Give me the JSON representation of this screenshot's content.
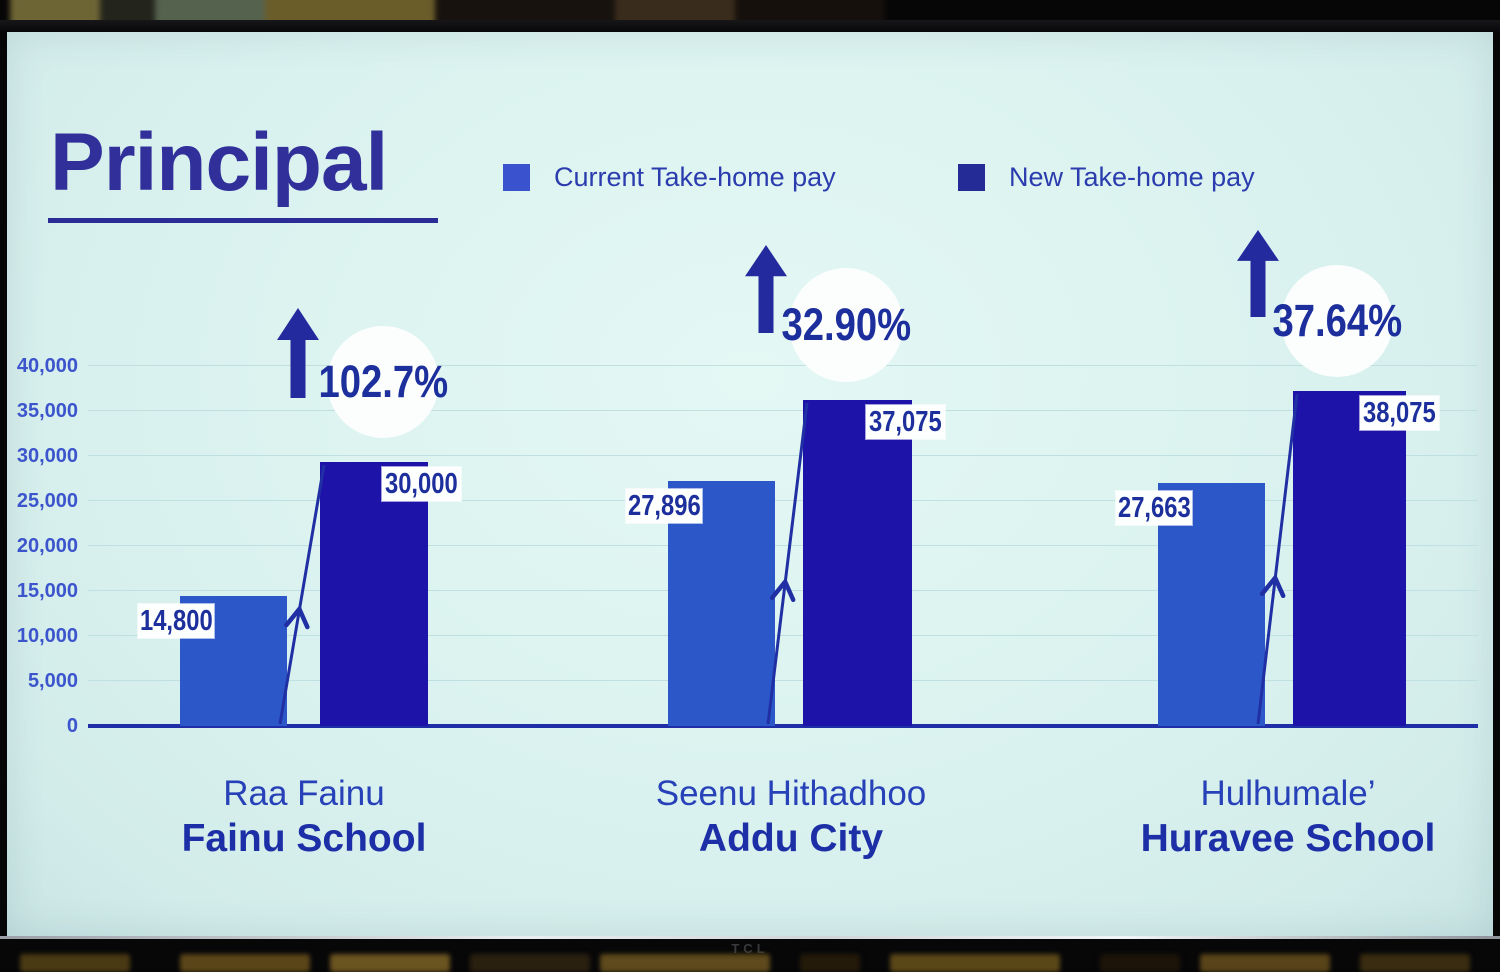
{
  "tv": {
    "brand": "TCL"
  },
  "slide": {
    "title": "Principal",
    "background_color": "#daf2ef",
    "text_navy": "#1c2f9c"
  },
  "legend": {
    "items": [
      {
        "label": "Current Take-home pay",
        "color": "#3a52cd"
      },
      {
        "label": "New Take-home pay",
        "color": "#252b96"
      }
    ]
  },
  "chart_data": {
    "type": "bar",
    "title": "Principal",
    "ylabel": "",
    "ylim": [
      0,
      40000
    ],
    "grid": "horizontal",
    "legend_position": "top",
    "ytick_labels": [
      "0",
      "5,000",
      "10,000",
      "15,000",
      "20,000",
      "25,000",
      "30,000",
      "35,000",
      "40,000"
    ],
    "categories": [
      "Raa Fainu Fainu School",
      "Seenu Hithadhoo Addu City",
      "Hulhumale’ Huravee School"
    ],
    "series": [
      {
        "name": "Current Take-home pay",
        "color": "#2b57c8",
        "values": [
          14800,
          27896,
          27663
        ]
      },
      {
        "name": "New Take-home pay",
        "color": "#1e13a8",
        "values": [
          30000,
          37075,
          38075
        ]
      }
    ],
    "groups": [
      {
        "name_line1": "Raa Fainu",
        "name_line2": "Fainu School",
        "current": 14800,
        "current_label": "14,800",
        "new": 30000,
        "new_label": "30,000",
        "increase_label": "102.7%"
      },
      {
        "name_line1": "Seenu Hithadhoo",
        "name_line2": "Addu City",
        "current": 27896,
        "current_label": "27,896",
        "new": 37075,
        "new_label": "37,075",
        "increase_label": "32.90%"
      },
      {
        "name_line1": "Hulhumale’",
        "name_line2": "Huravee School",
        "current": 27663,
        "current_label": "27,663",
        "new": 38075,
        "new_label": "38,075",
        "increase_label": "37.64%"
      }
    ]
  }
}
